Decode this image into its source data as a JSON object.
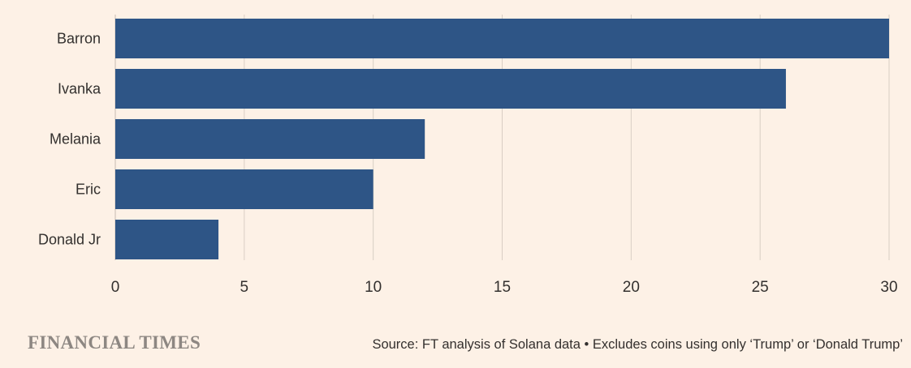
{
  "chart_data": {
    "type": "bar",
    "orientation": "horizontal",
    "categories": [
      "Barron",
      "Ivanka",
      "Melania",
      "Eric",
      "Donald Jr"
    ],
    "values": [
      30,
      26,
      12,
      10,
      4
    ],
    "xlim": [
      0,
      30
    ],
    "xticks": [
      0,
      5,
      10,
      15,
      20,
      25,
      30
    ],
    "grid": true,
    "bar_color": "#2e5586",
    "gridline_color": "#d9cec4"
  },
  "footer": {
    "brand": "FINANCIAL TIMES",
    "source": "Source: FT analysis of Solana data • Excludes coins using only ‘Trump’ or ‘Donald Trump’"
  }
}
